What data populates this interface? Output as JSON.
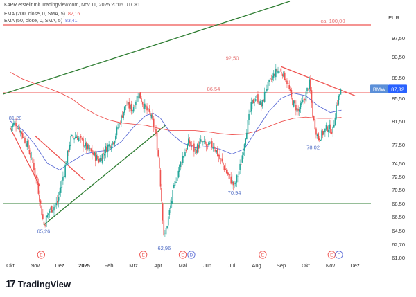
{
  "header": {
    "attribution": "K4PR erstellt mit TradingView.com, Nov 11, 2025 20:06 UTC+1",
    "indicators": [
      {
        "label": "EMA (200, close, 0, SMA, 5)",
        "value": "82,16",
        "color": "#ef5350"
      },
      {
        "label": "EMA (50, close, 0, SMA, 5)",
        "value": "83,41",
        "color": "#5b6cd6"
      }
    ]
  },
  "logo": {
    "text": "TradingView",
    "mark": "17"
  },
  "chart_data": {
    "type": "candlestick",
    "currency": "EUR",
    "ylim": [
      61.0,
      101.0
    ],
    "x_ticks": [
      "Okt",
      "Nov",
      "Dez",
      "2025",
      "Feb",
      "Mrz",
      "Apr",
      "Mai",
      "Jun",
      "Jul",
      "Aug",
      "Sep",
      "Okt",
      "Nov",
      "Dez"
    ],
    "y_ticks": [
      "97,50",
      "93,50",
      "89,50",
      "85,50",
      "81,50",
      "77,50",
      "74,50",
      "72,50",
      "70,50",
      "68,50",
      "66,50",
      "64,50",
      "62,70",
      "61,00"
    ],
    "y_tick_values": [
      97.5,
      93.5,
      89.5,
      85.5,
      81.5,
      77.5,
      74.5,
      72.5,
      70.5,
      68.5,
      66.5,
      64.5,
      62.7,
      61.0
    ],
    "last_price": {
      "symbol": "BMW",
      "value": "87,32",
      "y": 87.32
    },
    "levels": [
      {
        "label": "ca. 100,00",
        "y": 100.0
      },
      {
        "label": "92,50",
        "y": 92.5
      },
      {
        "label": "86,54",
        "y": 86.54
      },
      {
        "label": "",
        "y": 68.5
      }
    ],
    "point_labels": [
      {
        "label": "81,28",
        "x": 0.2,
        "y": 81.28
      },
      {
        "label": "65,26",
        "x": 1.35,
        "y": 65.26
      },
      {
        "label": "62,96",
        "x": 6.25,
        "y": 62.96
      },
      {
        "label": "70,94",
        "x": 9.1,
        "y": 70.94
      },
      {
        "label": "78,02",
        "x": 12.3,
        "y": 78.02
      }
    ],
    "event_markers": [
      {
        "label": "E",
        "x": 1.25
      },
      {
        "label": "E",
        "x": 5.4
      },
      {
        "label": "E",
        "x": 7.0
      },
      {
        "label": "D",
        "x": 7.35
      },
      {
        "label": "E",
        "x": 10.25
      },
      {
        "label": "E",
        "x": 13.05
      },
      {
        "label": "F",
        "x": 13.35
      }
    ],
    "trendlines": [
      {
        "color": "#2e7d32",
        "x1": -0.3,
        "y1": 86.3,
        "x2": 11.35,
        "y2": 102.0
      },
      {
        "color": "#2e7d32",
        "x1": 1.35,
        "y1": 65.3,
        "x2": 6.3,
        "y2": 80.8
      },
      {
        "color": "#ef5350",
        "x1": 0.0,
        "y1": 80.3,
        "x2": 1.2,
        "y2": 71.0
      },
      {
        "color": "#ef5350",
        "x1": 1.0,
        "y1": 79.0,
        "x2": 3.0,
        "y2": 72.0
      },
      {
        "color": "#ef5350",
        "x1": 11.0,
        "y1": 91.6,
        "x2": 14.0,
        "y2": 86.0
      }
    ],
    "anchors": [
      [
        0.0,
        80.5
      ],
      [
        0.2,
        81.3
      ],
      [
        0.45,
        79.5
      ],
      [
        0.7,
        77.3
      ],
      [
        0.95,
        74.0
      ],
      [
        1.15,
        70.2
      ],
      [
        1.35,
        65.3
      ],
      [
        1.6,
        67.5
      ],
      [
        1.9,
        68.5
      ],
      [
        2.2,
        73.5
      ],
      [
        2.45,
        78.5
      ],
      [
        2.7,
        79.0
      ],
      [
        3.0,
        77.5
      ],
      [
        3.3,
        76.2
      ],
      [
        3.6,
        75.0
      ],
      [
        3.9,
        77.0
      ],
      [
        4.2,
        78.3
      ],
      [
        4.45,
        81.5
      ],
      [
        4.7,
        84.5
      ],
      [
        4.95,
        83.5
      ],
      [
        5.2,
        86.5
      ],
      [
        5.45,
        84.0
      ],
      [
        5.7,
        82.5
      ],
      [
        5.9,
        79.5
      ],
      [
        6.05,
        74.0
      ],
      [
        6.25,
        63.2
      ],
      [
        6.5,
        68.0
      ],
      [
        6.75,
        72.5
      ],
      [
        7.0,
        75.5
      ],
      [
        7.25,
        78.0
      ],
      [
        7.5,
        76.5
      ],
      [
        7.75,
        78.0
      ],
      [
        8.0,
        77.2
      ],
      [
        8.25,
        77.5
      ],
      [
        8.5,
        75.3
      ],
      [
        8.8,
        73.0
      ],
      [
        9.1,
        71.0
      ],
      [
        9.35,
        74.2
      ],
      [
        9.6,
        80.2
      ],
      [
        9.8,
        84.5
      ],
      [
        10.0,
        85.8
      ],
      [
        10.2,
        84.0
      ],
      [
        10.4,
        87.5
      ],
      [
        10.6,
        89.2
      ],
      [
        10.8,
        90.8
      ],
      [
        11.05,
        90.5
      ],
      [
        11.25,
        88.5
      ],
      [
        11.45,
        85.0
      ],
      [
        11.7,
        83.2
      ],
      [
        11.95,
        85.5
      ],
      [
        12.15,
        88.5
      ],
      [
        12.3,
        82.0
      ],
      [
        12.5,
        78.5
      ],
      [
        12.7,
        79.5
      ],
      [
        12.9,
        80.5
      ],
      [
        13.1,
        79.8
      ],
      [
        13.25,
        84.5
      ],
      [
        13.45,
        87.3
      ]
    ],
    "ema200": [
      [
        0.0,
        90.5
      ],
      [
        0.5,
        89.2
      ],
      [
        1.0,
        88.3
      ],
      [
        1.5,
        87.5
      ],
      [
        2.0,
        86.6
      ],
      [
        2.5,
        85.4
      ],
      [
        3.0,
        83.8
      ],
      [
        3.5,
        82.6
      ],
      [
        4.0,
        81.7
      ],
      [
        4.5,
        81.2
      ],
      [
        5.0,
        81.0
      ],
      [
        5.5,
        80.8
      ],
      [
        6.0,
        80.3
      ],
      [
        6.5,
        79.9
      ],
      [
        7.0,
        79.9
      ],
      [
        7.5,
        79.9
      ],
      [
        8.0,
        79.7
      ],
      [
        8.5,
        79.4
      ],
      [
        9.0,
        79.2
      ],
      [
        9.5,
        79.3
      ],
      [
        10.0,
        79.8
      ],
      [
        10.5,
        80.6
      ],
      [
        11.0,
        81.4
      ],
      [
        11.5,
        82.0
      ],
      [
        12.0,
        82.2
      ],
      [
        12.5,
        82.0
      ],
      [
        13.0,
        82.0
      ],
      [
        13.45,
        82.16
      ]
    ],
    "ema50": [
      [
        0.0,
        81.5
      ],
      [
        0.5,
        80.0
      ],
      [
        1.0,
        77.5
      ],
      [
        1.5,
        74.5
      ],
      [
        2.0,
        73.5
      ],
      [
        2.5,
        74.8
      ],
      [
        3.0,
        76.0
      ],
      [
        3.5,
        76.4
      ],
      [
        4.0,
        76.6
      ],
      [
        4.5,
        78.0
      ],
      [
        5.0,
        80.5
      ],
      [
        5.5,
        82.5
      ],
      [
        5.8,
        82.9
      ],
      [
        6.1,
        82.0
      ],
      [
        6.5,
        79.5
      ],
      [
        7.0,
        77.8
      ],
      [
        7.5,
        77.0
      ],
      [
        8.0,
        77.2
      ],
      [
        8.5,
        76.8
      ],
      [
        9.0,
        76.0
      ],
      [
        9.5,
        76.8
      ],
      [
        10.0,
        80.0
      ],
      [
        10.5,
        83.2
      ],
      [
        11.0,
        85.5
      ],
      [
        11.5,
        86.5
      ],
      [
        12.0,
        86.0
      ],
      [
        12.5,
        84.2
      ],
      [
        13.0,
        83.0
      ],
      [
        13.45,
        83.41
      ]
    ]
  }
}
